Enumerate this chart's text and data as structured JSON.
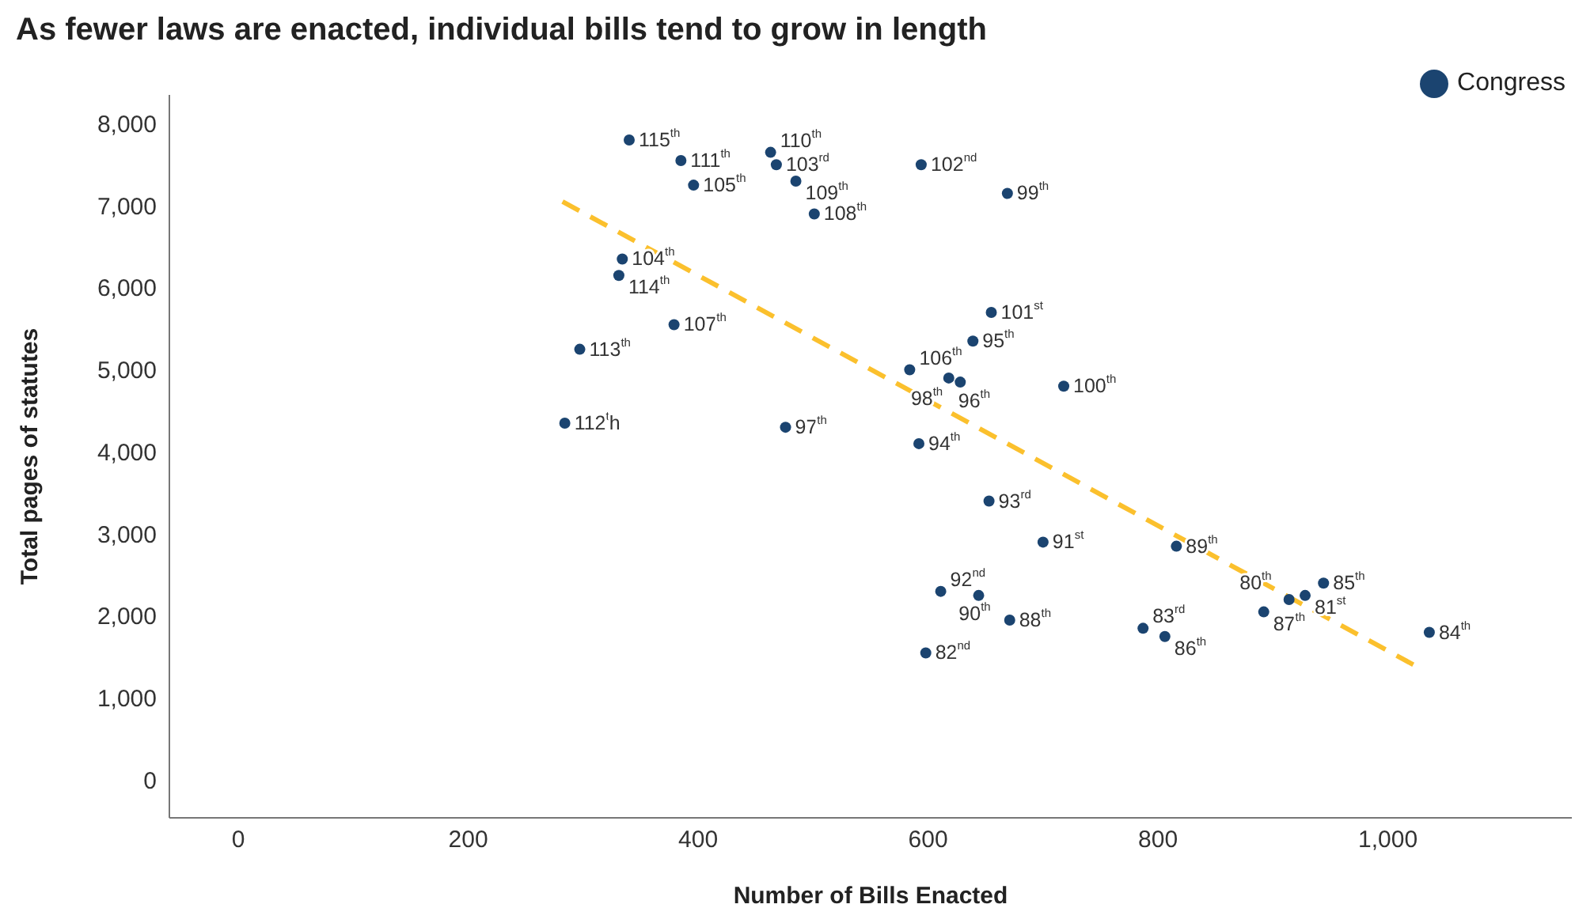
{
  "chart_data": {
    "type": "scatter",
    "title": "As fewer laws are enacted, individual bills tend to grow in length",
    "xlabel": "Number of Bills Enacted",
    "ylabel": "Total pages of statutes",
    "xlim": [
      -60,
      1160
    ],
    "ylim": [
      -460,
      8350
    ],
    "xticks": [
      0,
      200,
      400,
      600,
      800,
      {
        "value": 1000,
        "label": "1,000"
      }
    ],
    "yticks": [
      0,
      {
        "value": 1000,
        "label": "1,000"
      },
      {
        "value": 2000,
        "label": "2,000"
      },
      {
        "value": 3000,
        "label": "3,000"
      },
      {
        "value": 4000,
        "label": "4,000"
      },
      {
        "value": 5000,
        "label": "5,000"
      },
      {
        "value": 6000,
        "label": "6,000"
      },
      {
        "value": 7000,
        "label": "7,000"
      },
      {
        "value": 8000,
        "label": "8,000"
      }
    ],
    "grid": false,
    "legend": "top right",
    "series": [
      {
        "name": "Congress",
        "color": "#1b4470",
        "x": [
          340,
          385,
          463,
          468,
          594,
          669,
          396,
          485,
          501,
          334,
          331,
          655,
          379,
          639,
          297,
          584,
          618,
          628,
          718,
          284,
          476,
          592,
          653,
          700,
          611,
          644,
          671,
          598,
          816,
          787,
          806,
          892,
          914,
          928,
          944,
          1036
        ],
        "values": [
          7800,
          7550,
          7650,
          7500,
          7500,
          7150,
          7250,
          7300,
          6900,
          6350,
          6150,
          5700,
          5550,
          5350,
          5250,
          5000,
          4900,
          4850,
          4800,
          4350,
          4300,
          4100,
          3400,
          2900,
          2300,
          2250,
          1950,
          1550,
          2850,
          1850,
          1750,
          2050,
          2200,
          2250,
          2400,
          1800
        ]
      },
      {
        "type": "line",
        "color": "#fbc02d",
        "line_style": "dashed",
        "x": [
          282,
          1023
        ],
        "values": [
          7050,
          1400
        ]
      }
    ],
    "annotations": [
      {
        "text": "115$^{th}$",
        "x": 340,
        "y": 7800
      },
      {
        "text": "111$^{th}$",
        "x": 385,
        "y": 7550
      },
      {
        "text": "110$^{th}$",
        "x": 463,
        "y": 7650
      },
      {
        "text": "103$^{rd}$",
        "x": 468,
        "y": 7500
      },
      {
        "text": "102$^{nd}$",
        "x": 594,
        "y": 7500
      },
      {
        "text": "99$^{th}$",
        "x": 669,
        "y": 7150
      },
      {
        "text": "105$^{th}$",
        "x": 396,
        "y": 7250
      },
      {
        "text": "109$^{th}$",
        "x": 485,
        "y": 7300
      },
      {
        "text": "108$^{th}$",
        "x": 501,
        "y": 6900
      },
      {
        "text": "104$^{th}$",
        "x": 334,
        "y": 6350
      },
      {
        "text": "114$^{th}$",
        "x": 331,
        "y": 6150
      },
      {
        "text": "101$^{st}$",
        "x": 655,
        "y": 5700
      },
      {
        "text": "107$^{th}$",
        "x": 379,
        "y": 5550
      },
      {
        "text": "95$^{th}$",
        "x": 639,
        "y": 5350
      },
      {
        "text": "113$^{th}$",
        "x": 297,
        "y": 5250
      },
      {
        "text": "106$^{th}$",
        "x": 584,
        "y": 5000
      },
      {
        "text": "96$^{th}$",
        "x": 618,
        "y": 4900
      },
      {
        "text": "98$^{th}$",
        "x": 628,
        "y": 4850
      },
      {
        "text": "100$^{th}$",
        "x": 718,
        "y": 4800
      },
      {
        "text": "112$^{t}$h",
        "x": 284,
        "y": 4350
      },
      {
        "text": "97$^{th}$",
        "x": 476,
        "y": 4300
      },
      {
        "text": "94$^{th}$",
        "x": 592,
        "y": 4100
      },
      {
        "text": "93$^{rd}$",
        "x": 653,
        "y": 3400
      },
      {
        "text": "91$^{st}$",
        "x": 700,
        "y": 2900
      },
      {
        "text": "92$^{nd}$",
        "x": 611,
        "y": 2300
      },
      {
        "text": "90$^{th}$",
        "x": 644,
        "y": 2250
      },
      {
        "text": "88$^{th}$",
        "x": 671,
        "y": 1950
      },
      {
        "text": "82$^{nd}$",
        "x": 598,
        "y": 1550
      },
      {
        "text": "89$^{th}$",
        "x": 816,
        "y": 2850
      },
      {
        "text": "83$^{rd}$",
        "x": 787,
        "y": 1850
      },
      {
        "text": "86$^{th}$",
        "x": 806,
        "y": 1750
      },
      {
        "text": "87$^{th}$",
        "x": 892,
        "y": 2050
      },
      {
        "text": "80$^{th}$",
        "x": 914,
        "y": 2200
      },
      {
        "text": "81$^{st}$",
        "x": 928,
        "y": 2250
      },
      {
        "text": "85$^{th}$",
        "x": 944,
        "y": 2400
      },
      {
        "text": "84$^{th}$",
        "x": 1036,
        "y": 1800
      }
    ]
  }
}
